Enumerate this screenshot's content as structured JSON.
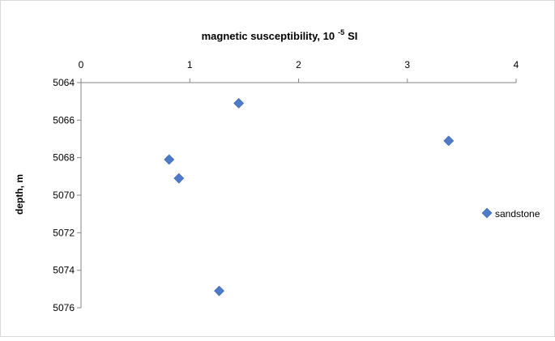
{
  "chart_data": {
    "type": "scatter",
    "title": "magnetic susceptibility, 10",
    "title_superscript": "-5",
    "title_suffix": "SI",
    "xlabel": "magnetic susceptibility, 10 -5 SI",
    "ylabel": "depth, m",
    "x_axis_position": "top",
    "y_axis_inverted": true,
    "xlim": [
      0,
      4
    ],
    "ylim": [
      5064,
      5076
    ],
    "x_ticks": [
      0,
      1,
      2,
      3,
      4
    ],
    "y_ticks": [
      5064,
      5066,
      5068,
      5070,
      5072,
      5074,
      5076
    ],
    "grid": false,
    "legend_placement": "right",
    "series": [
      {
        "name": "sandstone",
        "color": "#4f7ac8",
        "marker": "diamond",
        "points": [
          {
            "x": 1.45,
            "y": 5065.1
          },
          {
            "x": 0.81,
            "y": 5068.1
          },
          {
            "x": 0.9,
            "y": 5069.1
          },
          {
            "x": 1.27,
            "y": 5075.1
          },
          {
            "x": 3.38,
            "y": 5067.1
          }
        ]
      }
    ]
  }
}
